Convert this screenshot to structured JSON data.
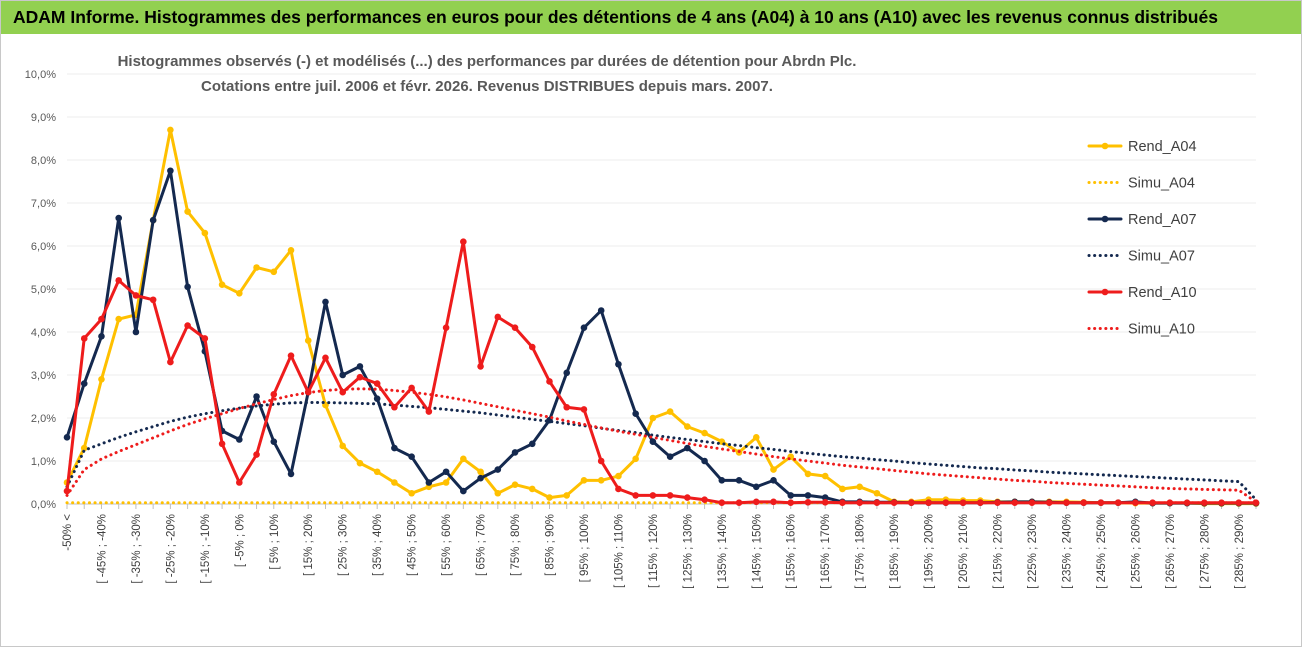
{
  "header": {
    "title": "ADAM Informe. Histogrammes des performances en euros pour des détentions de 4 ans (A04) à 10 ans (A10) avec les revenus connus distribués"
  },
  "chart_data": {
    "type": "line",
    "title_line1": "Histogrammes observés (-) et modélisés (...) des performances par durées de détention pour Abrdn Plc.",
    "title_line2": "Cotations entre juil. 2006 et févr. 2026. Revenus DISTRIBUES depuis mars. 2007.",
    "ylim": [
      0,
      10
    ],
    "y_ticks": [
      "0,0%",
      "1,0%",
      "2,0%",
      "3,0%",
      "4,0%",
      "5,0%",
      "6,0%",
      "7,0%",
      "8,0%",
      "9,0%",
      "10,0%"
    ],
    "x_labels": [
      "-50% <",
      "[ -45% ; -40%",
      "[ -35% ; -30%",
      "[ -25% ; -20%",
      "[ -15% ; -10%",
      "[ -5% ; 0%",
      "[ 5% ; 10%",
      "[ 15% ; 20%",
      "[ 25% ; 30%",
      "[ 35% ; 40%",
      "[ 45% ; 50%",
      "[ 55% ; 60%",
      "[ 65% ; 70%",
      "[ 75% ; 80%",
      "[ 85% ; 90%",
      "[ 95% ; 100%",
      "[ 105% ; 110%",
      "[ 115% ; 120%",
      "[ 125% ; 130%",
      "[ 135% ; 140%",
      "[ 145% ; 150%",
      "[ 155% ; 160%",
      "[ 165% ; 170%",
      "[ 175% ; 180%",
      "[ 185% ; 190%",
      "[ 195% ; 200%",
      "[ 205% ; 210%",
      "[ 215% ; 220%",
      "[ 225% ; 230%",
      "[ 235% ; 240%",
      "[ 245% ; 250%",
      "[ 255% ; 260%",
      "[ 265% ; 270%",
      "[ 275% ; 280%",
      "[ 285% ; 290%"
    ],
    "categories_count": 70,
    "legend_position": "right",
    "series": [
      {
        "name": "Rend_A04",
        "style": "solid",
        "markers": true,
        "color": "#ffc000",
        "values": [
          0.5,
          1.3,
          2.9,
          4.3,
          4.4,
          6.6,
          8.7,
          6.8,
          6.3,
          5.1,
          4.9,
          5.5,
          5.4,
          5.9,
          3.8,
          2.3,
          1.35,
          0.95,
          0.75,
          0.5,
          0.25,
          0.4,
          0.5,
          1.05,
          0.75,
          0.25,
          0.45,
          0.35,
          0.15,
          0.2,
          0.55,
          0.55,
          0.65,
          1.05,
          2.0,
          2.15,
          1.8,
          1.65,
          1.45,
          1.2,
          1.55,
          0.8,
          1.1,
          0.7,
          0.65,
          0.35,
          0.4,
          0.25,
          0.05,
          0.05,
          0.1,
          0.1,
          0.08,
          0.08,
          0.05,
          0.05,
          0.05,
          0.05,
          0.05,
          0.04,
          0.03,
          0.03,
          0.02,
          0.02,
          0.02,
          0.02,
          0.01,
          0.01,
          0.01,
          0.01
        ]
      },
      {
        "name": "Simu_A04",
        "style": "dotted",
        "markers": false,
        "color": "#ffc000",
        "values": [
          0.03,
          0.03,
          0.03,
          0.03,
          0.03,
          0.03,
          0.03,
          0.03,
          0.03,
          0.03,
          0.03,
          0.03,
          0.03,
          0.03,
          0.03,
          0.03,
          0.03,
          0.03,
          0.03,
          0.03,
          0.03,
          0.03,
          0.03,
          0.03,
          0.03,
          0.03,
          0.03,
          0.03,
          0.03,
          0.03,
          0.03,
          0.03,
          0.03,
          0.03,
          0.03,
          0.03,
          0.03,
          0.03,
          0.03,
          0.03,
          0.03,
          0.03,
          0.03,
          0.03,
          0.03,
          0.03,
          0.03,
          0.03,
          0.03,
          0.03,
          0.03,
          0.03,
          0.03,
          0.03,
          0.03,
          0.03,
          0.03,
          0.03,
          0.03,
          0.03,
          0.03,
          0.03,
          0.03,
          0.03,
          0.03,
          0.03,
          0.03,
          0.03,
          0.03,
          0.03
        ]
      },
      {
        "name": "Rend_A07",
        "style": "solid",
        "markers": true,
        "color": "#14294f",
        "values": [
          1.55,
          2.8,
          3.9,
          6.65,
          4.0,
          6.6,
          7.75,
          5.05,
          3.55,
          1.7,
          1.5,
          2.5,
          1.45,
          0.7,
          2.6,
          4.7,
          3.0,
          3.2,
          2.45,
          1.3,
          1.1,
          0.5,
          0.75,
          0.3,
          0.6,
          0.8,
          1.2,
          1.4,
          1.95,
          3.05,
          4.1,
          4.5,
          3.25,
          2.1,
          1.45,
          1.1,
          1.3,
          1.0,
          0.55,
          0.55,
          0.4,
          0.55,
          0.2,
          0.2,
          0.15,
          0.05,
          0.05,
          0.04,
          0.04,
          0.03,
          0.03,
          0.03,
          0.03,
          0.03,
          0.04,
          0.05,
          0.05,
          0.04,
          0.03,
          0.03,
          0.03,
          0.03,
          0.05,
          0.02,
          0.02,
          0.02,
          0.02,
          0.02,
          0.02,
          0.02
        ]
      },
      {
        "name": "Simu_A07",
        "style": "dotted",
        "markers": false,
        "color": "#14294f",
        "values": [
          0.4,
          1.25,
          1.4,
          1.55,
          1.68,
          1.8,
          1.92,
          2.02,
          2.1,
          2.17,
          2.23,
          2.28,
          2.32,
          2.35,
          2.36,
          2.36,
          2.35,
          2.34,
          2.33,
          2.3,
          2.27,
          2.24,
          2.2,
          2.16,
          2.12,
          2.07,
          2.02,
          1.97,
          1.92,
          1.87,
          1.82,
          1.76,
          1.71,
          1.66,
          1.6,
          1.55,
          1.5,
          1.45,
          1.4,
          1.36,
          1.31,
          1.27,
          1.22,
          1.18,
          1.14,
          1.1,
          1.07,
          1.03,
          1.0,
          0.96,
          0.93,
          0.9,
          0.87,
          0.84,
          0.82,
          0.79,
          0.77,
          0.74,
          0.72,
          0.7,
          0.68,
          0.66,
          0.64,
          0.62,
          0.6,
          0.58,
          0.56,
          0.54,
          0.52,
          0.1
        ]
      },
      {
        "name": "Rend_A10",
        "style": "solid",
        "markers": true,
        "color": "#ee1c1c",
        "values": [
          0.3,
          3.85,
          4.3,
          5.2,
          4.85,
          4.75,
          3.3,
          4.15,
          3.85,
          1.4,
          0.5,
          1.15,
          2.55,
          3.45,
          2.6,
          3.4,
          2.6,
          2.95,
          2.8,
          2.25,
          2.7,
          2.15,
          4.1,
          6.1,
          3.2,
          4.35,
          4.1,
          3.65,
          2.85,
          2.25,
          2.2,
          1.0,
          0.35,
          0.2,
          0.2,
          0.2,
          0.15,
          0.1,
          0.03,
          0.03,
          0.05,
          0.05,
          0.03,
          0.04,
          0.04,
          0.03,
          0.03,
          0.03,
          0.03,
          0.03,
          0.03,
          0.03,
          0.03,
          0.03,
          0.03,
          0.03,
          0.03,
          0.03,
          0.03,
          0.03,
          0.03,
          0.03,
          0.03,
          0.03,
          0.03,
          0.03,
          0.03,
          0.03,
          0.03,
          0.03
        ]
      },
      {
        "name": "Simu_A10",
        "style": "dotted",
        "markers": false,
        "color": "#ee1c1c",
        "values": [
          0.2,
          0.8,
          1.05,
          1.22,
          1.38,
          1.54,
          1.7,
          1.85,
          1.98,
          2.1,
          2.22,
          2.33,
          2.43,
          2.52,
          2.59,
          2.64,
          2.67,
          2.68,
          2.67,
          2.64,
          2.6,
          2.55,
          2.49,
          2.42,
          2.34,
          2.26,
          2.18,
          2.1,
          2.02,
          1.93,
          1.85,
          1.77,
          1.69,
          1.62,
          1.55,
          1.48,
          1.41,
          1.34,
          1.28,
          1.22,
          1.16,
          1.1,
          1.05,
          1.0,
          0.95,
          0.9,
          0.86,
          0.82,
          0.78,
          0.74,
          0.7,
          0.67,
          0.64,
          0.61,
          0.58,
          0.55,
          0.53,
          0.5,
          0.48,
          0.46,
          0.44,
          0.42,
          0.4,
          0.38,
          0.36,
          0.35,
          0.34,
          0.33,
          0.32,
          0.05
        ]
      }
    ]
  }
}
